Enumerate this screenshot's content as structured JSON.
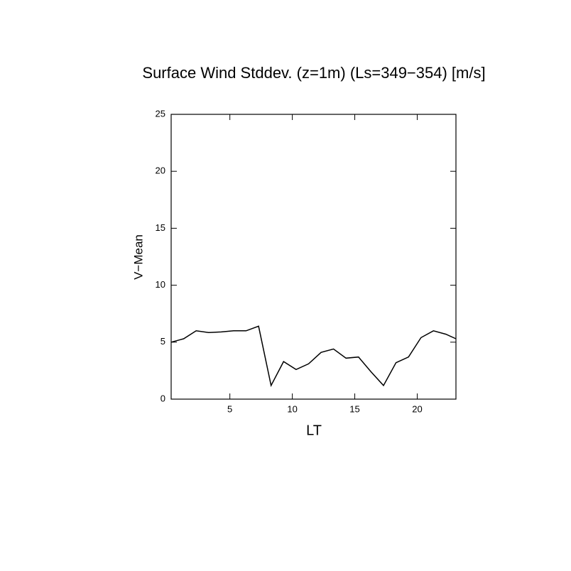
{
  "chart_data": {
    "type": "line",
    "title": "Surface Wind Stddev. (z=1m) (Ls=349−354) [m/s]",
    "x_label": "LT",
    "y_label": "V−Mean",
    "x": [
      0.3,
      1.3,
      2.3,
      3.3,
      4.3,
      5.3,
      6.3,
      7.3,
      8.3,
      9.3,
      10.3,
      11.3,
      12.3,
      13.3,
      14.3,
      15.3,
      16.3,
      17.3,
      18.3,
      19.3,
      20.3,
      21.3,
      22.3,
      23.1
    ],
    "series": [
      {
        "color": "#000000",
        "values": [
          5.0,
          5.3,
          6.0,
          5.85,
          5.9,
          6.0,
          6.0,
          6.4,
          1.2,
          3.3,
          2.6,
          3.1,
          4.1,
          4.4,
          3.6,
          3.7,
          2.4,
          1.2,
          3.2,
          3.7,
          5.4,
          6.0,
          5.7,
          5.3
        ]
      }
    ],
    "xlim": [
      0.3,
      23.1
    ],
    "ylim": [
      0,
      25
    ],
    "xticks": [
      5,
      10,
      15,
      20
    ],
    "yticks": [
      0,
      5,
      10,
      15,
      20,
      25
    ]
  }
}
